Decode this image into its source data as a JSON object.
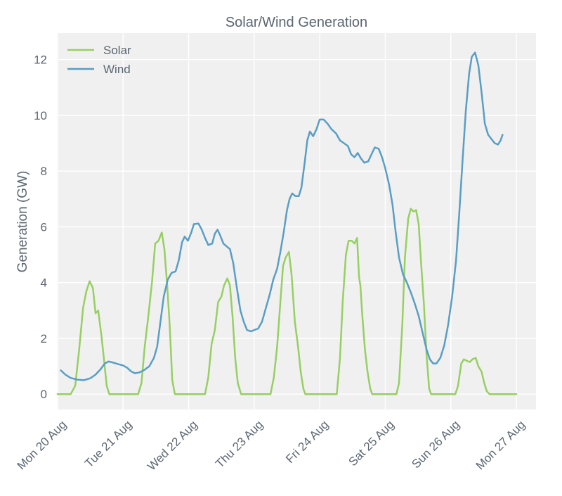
{
  "chart_data": {
    "type": "line",
    "title": "Solar/Wind Generation",
    "xlabel": "",
    "ylabel": "Generation (GW)",
    "xlim": [
      -0.01,
      7.3
    ],
    "ylim": [
      -0.55,
      12.95
    ],
    "grid": true,
    "legend_position": "top-left",
    "x_ticks": [
      {
        "x": 0,
        "label": "Mon 20 Aug"
      },
      {
        "x": 1,
        "label": "Tue 21 Aug"
      },
      {
        "x": 2,
        "label": "Wed 22 Aug"
      },
      {
        "x": 3,
        "label": "Thu 23 Aug"
      },
      {
        "x": 4,
        "label": "Fri 24 Aug"
      },
      {
        "x": 5,
        "label": "Sat 25 Aug"
      },
      {
        "x": 6,
        "label": "Sun 26 Aug"
      },
      {
        "x": 7,
        "label": "Mon 27 Aug"
      }
    ],
    "y_ticks": [
      {
        "y": 0,
        "label": "0"
      },
      {
        "y": 2,
        "label": "2"
      },
      {
        "y": 4,
        "label": "4"
      },
      {
        "y": 6,
        "label": "6"
      },
      {
        "y": 8,
        "label": "8"
      },
      {
        "y": 10,
        "label": "10"
      },
      {
        "y": 12,
        "label": "12"
      }
    ],
    "series": [
      {
        "name": "Solar",
        "color": "#97cf61",
        "points": [
          [
            0.0,
            0.0
          ],
          [
            0.2,
            0.0
          ],
          [
            0.27,
            0.3
          ],
          [
            0.33,
            1.6
          ],
          [
            0.39,
            3.1
          ],
          [
            0.44,
            3.7
          ],
          [
            0.49,
            4.05
          ],
          [
            0.54,
            3.8
          ],
          [
            0.58,
            2.9
          ],
          [
            0.62,
            3.0
          ],
          [
            0.67,
            2.1
          ],
          [
            0.71,
            1.2
          ],
          [
            0.75,
            0.3
          ],
          [
            0.79,
            0.0
          ],
          [
            1.0,
            0.0
          ],
          [
            1.23,
            0.0
          ],
          [
            1.28,
            0.4
          ],
          [
            1.33,
            1.7
          ],
          [
            1.38,
            2.7
          ],
          [
            1.44,
            4.0
          ],
          [
            1.49,
            5.4
          ],
          [
            1.54,
            5.5
          ],
          [
            1.59,
            5.8
          ],
          [
            1.63,
            5.2
          ],
          [
            1.67,
            4.0
          ],
          [
            1.71,
            2.5
          ],
          [
            1.75,
            0.5
          ],
          [
            1.79,
            0.0
          ],
          [
            2.0,
            0.0
          ],
          [
            2.25,
            0.0
          ],
          [
            2.3,
            0.6
          ],
          [
            2.35,
            1.8
          ],
          [
            2.4,
            2.3
          ],
          [
            2.45,
            3.3
          ],
          [
            2.5,
            3.5
          ],
          [
            2.54,
            3.9
          ],
          [
            2.59,
            4.15
          ],
          [
            2.63,
            3.9
          ],
          [
            2.67,
            2.8
          ],
          [
            2.71,
            1.3
          ],
          [
            2.75,
            0.4
          ],
          [
            2.8,
            0.0
          ],
          [
            3.0,
            0.0
          ],
          [
            3.25,
            0.0
          ],
          [
            3.3,
            0.6
          ],
          [
            3.35,
            1.7
          ],
          [
            3.4,
            3.3
          ],
          [
            3.44,
            4.6
          ],
          [
            3.48,
            4.9
          ],
          [
            3.53,
            5.1
          ],
          [
            3.57,
            4.3
          ],
          [
            3.62,
            2.6
          ],
          [
            3.67,
            1.7
          ],
          [
            3.71,
            0.8
          ],
          [
            3.75,
            0.2
          ],
          [
            3.78,
            0.0
          ],
          [
            4.0,
            0.0
          ],
          [
            4.26,
            0.0
          ],
          [
            4.31,
            1.3
          ],
          [
            4.35,
            3.3
          ],
          [
            4.4,
            5.0
          ],
          [
            4.44,
            5.5
          ],
          [
            4.49,
            5.5
          ],
          [
            4.53,
            5.4
          ],
          [
            4.57,
            5.6
          ],
          [
            4.6,
            4.2
          ],
          [
            4.62,
            3.9
          ],
          [
            4.65,
            2.8
          ],
          [
            4.69,
            1.6
          ],
          [
            4.73,
            0.8
          ],
          [
            4.77,
            0.2
          ],
          [
            4.8,
            0.0
          ],
          [
            5.0,
            0.0
          ],
          [
            5.17,
            0.0
          ],
          [
            5.21,
            0.4
          ],
          [
            5.26,
            2.5
          ],
          [
            5.3,
            4.9
          ],
          [
            5.35,
            6.3
          ],
          [
            5.39,
            6.65
          ],
          [
            5.43,
            6.55
          ],
          [
            5.47,
            6.6
          ],
          [
            5.51,
            6.1
          ],
          [
            5.55,
            4.6
          ],
          [
            5.59,
            3.2
          ],
          [
            5.63,
            1.4
          ],
          [
            5.67,
            0.2
          ],
          [
            5.7,
            0.0
          ],
          [
            6.0,
            0.0
          ],
          [
            6.07,
            0.0
          ],
          [
            6.11,
            0.3
          ],
          [
            6.16,
            1.1
          ],
          [
            6.2,
            1.25
          ],
          [
            6.24,
            1.2
          ],
          [
            6.29,
            1.15
          ],
          [
            6.33,
            1.25
          ],
          [
            6.38,
            1.3
          ],
          [
            6.42,
            1.0
          ],
          [
            6.47,
            0.8
          ],
          [
            6.51,
            0.4
          ],
          [
            6.55,
            0.1
          ],
          [
            6.59,
            0.0
          ],
          [
            7.0,
            0.0
          ]
        ]
      },
      {
        "name": "Wind",
        "color": "#599ec4",
        "points": [
          [
            0.05,
            0.85
          ],
          [
            0.12,
            0.7
          ],
          [
            0.2,
            0.58
          ],
          [
            0.3,
            0.52
          ],
          [
            0.4,
            0.5
          ],
          [
            0.5,
            0.57
          ],
          [
            0.58,
            0.7
          ],
          [
            0.66,
            0.9
          ],
          [
            0.72,
            1.1
          ],
          [
            0.78,
            1.17
          ],
          [
            0.85,
            1.13
          ],
          [
            0.92,
            1.08
          ],
          [
            1.0,
            1.03
          ],
          [
            1.06,
            0.95
          ],
          [
            1.12,
            0.82
          ],
          [
            1.18,
            0.75
          ],
          [
            1.25,
            0.78
          ],
          [
            1.32,
            0.86
          ],
          [
            1.4,
            1.0
          ],
          [
            1.47,
            1.3
          ],
          [
            1.52,
            1.7
          ],
          [
            1.57,
            2.6
          ],
          [
            1.62,
            3.5
          ],
          [
            1.68,
            4.1
          ],
          [
            1.74,
            4.35
          ],
          [
            1.8,
            4.4
          ],
          [
            1.85,
            4.8
          ],
          [
            1.9,
            5.45
          ],
          [
            1.94,
            5.65
          ],
          [
            1.99,
            5.5
          ],
          [
            2.04,
            5.8
          ],
          [
            2.08,
            6.1
          ],
          [
            2.15,
            6.12
          ],
          [
            2.2,
            5.9
          ],
          [
            2.25,
            5.6
          ],
          [
            2.3,
            5.35
          ],
          [
            2.36,
            5.4
          ],
          [
            2.4,
            5.75
          ],
          [
            2.44,
            5.9
          ],
          [
            2.48,
            5.7
          ],
          [
            2.53,
            5.4
          ],
          [
            2.58,
            5.3
          ],
          [
            2.63,
            5.2
          ],
          [
            2.68,
            4.7
          ],
          [
            2.73,
            3.9
          ],
          [
            2.79,
            3.0
          ],
          [
            2.84,
            2.6
          ],
          [
            2.89,
            2.3
          ],
          [
            2.95,
            2.25
          ],
          [
            3.0,
            2.3
          ],
          [
            3.06,
            2.35
          ],
          [
            3.12,
            2.6
          ],
          [
            3.18,
            3.1
          ],
          [
            3.24,
            3.6
          ],
          [
            3.29,
            4.1
          ],
          [
            3.35,
            4.5
          ],
          [
            3.4,
            5.1
          ],
          [
            3.45,
            5.8
          ],
          [
            3.5,
            6.6
          ],
          [
            3.54,
            7.0
          ],
          [
            3.58,
            7.2
          ],
          [
            3.63,
            7.1
          ],
          [
            3.68,
            7.1
          ],
          [
            3.72,
            7.4
          ],
          [
            3.77,
            8.3
          ],
          [
            3.81,
            9.1
          ],
          [
            3.85,
            9.42
          ],
          [
            3.9,
            9.25
          ],
          [
            3.95,
            9.5
          ],
          [
            4.0,
            9.85
          ],
          [
            4.06,
            9.85
          ],
          [
            4.12,
            9.7
          ],
          [
            4.18,
            9.5
          ],
          [
            4.25,
            9.35
          ],
          [
            4.31,
            9.1
          ],
          [
            4.37,
            9.0
          ],
          [
            4.43,
            8.9
          ],
          [
            4.48,
            8.6
          ],
          [
            4.53,
            8.5
          ],
          [
            4.58,
            8.65
          ],
          [
            4.63,
            8.45
          ],
          [
            4.68,
            8.3
          ],
          [
            4.74,
            8.35
          ],
          [
            4.79,
            8.6
          ],
          [
            4.84,
            8.85
          ],
          [
            4.9,
            8.8
          ],
          [
            4.95,
            8.5
          ],
          [
            5.0,
            8.1
          ],
          [
            5.06,
            7.5
          ],
          [
            5.11,
            6.8
          ],
          [
            5.16,
            5.8
          ],
          [
            5.21,
            4.9
          ],
          [
            5.27,
            4.3
          ],
          [
            5.33,
            4.0
          ],
          [
            5.39,
            3.65
          ],
          [
            5.45,
            3.25
          ],
          [
            5.51,
            2.8
          ],
          [
            5.57,
            2.2
          ],
          [
            5.63,
            1.6
          ],
          [
            5.68,
            1.25
          ],
          [
            5.73,
            1.1
          ],
          [
            5.78,
            1.1
          ],
          [
            5.84,
            1.3
          ],
          [
            5.9,
            1.75
          ],
          [
            5.96,
            2.5
          ],
          [
            6.02,
            3.5
          ],
          [
            6.08,
            4.8
          ],
          [
            6.13,
            6.5
          ],
          [
            6.18,
            8.4
          ],
          [
            6.23,
            10.2
          ],
          [
            6.28,
            11.5
          ],
          [
            6.32,
            12.1
          ],
          [
            6.37,
            12.25
          ],
          [
            6.42,
            11.8
          ],
          [
            6.47,
            10.8
          ],
          [
            6.52,
            9.7
          ],
          [
            6.57,
            9.3
          ],
          [
            6.62,
            9.15
          ],
          [
            6.67,
            9.0
          ],
          [
            6.72,
            8.95
          ],
          [
            6.76,
            9.1
          ],
          [
            6.79,
            9.3
          ]
        ]
      }
    ]
  }
}
